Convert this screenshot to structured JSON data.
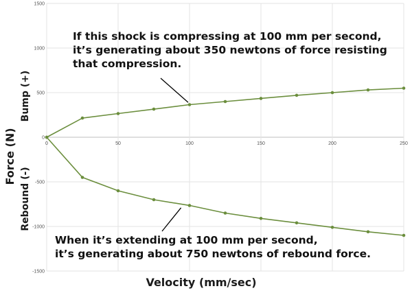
{
  "chart_data": {
    "type": "line",
    "title": "",
    "xlabel": "Velocity (mm/sec)",
    "ylabel": "Force (N)",
    "ylabel_upper": "Bump (+)",
    "ylabel_lower": "Rebound (-)",
    "xlim": [
      0,
      250
    ],
    "ylim": [
      -1500,
      1500
    ],
    "x_ticks": [
      0,
      50,
      100,
      150,
      200,
      250
    ],
    "y_ticks": [
      -1500,
      -1000,
      -500,
      0,
      500,
      1000,
      1500
    ],
    "grid": true,
    "legend": "none",
    "series_color": "#6b8e3d",
    "series": [
      {
        "x": [
          0,
          25,
          50,
          75,
          100,
          125,
          150,
          175,
          200,
          225,
          250
        ],
        "values": [
          0,
          215,
          265,
          315,
          365,
          400,
          435,
          470,
          500,
          530,
          550
        ]
      },
      {
        "x": [
          0,
          25,
          50,
          75,
          100,
          125,
          150,
          175,
          200,
          225,
          250
        ],
        "values": [
          0,
          -450,
          -600,
          -700,
          -765,
          -850,
          -910,
          -960,
          -1010,
          -1060,
          -1100
        ]
      }
    ],
    "annotations": [
      {
        "lines": [
          "If this shock is compressing at 100 mm per second,",
          "it’s generating about 350 newtons of force resisting",
          "that compression."
        ],
        "target": [
          100,
          360
        ]
      },
      {
        "lines": [
          "When it’s extending at 100 mm per second,",
          "it’s generating about 750 newtons of rebound force."
        ],
        "target": [
          95,
          -760
        ]
      }
    ]
  }
}
